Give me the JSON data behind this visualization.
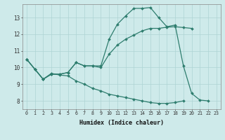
{
  "xlabel": "Humidex (Indice chaleur)",
  "x_ticks": [
    0,
    1,
    2,
    3,
    4,
    5,
    6,
    7,
    8,
    9,
    10,
    11,
    12,
    13,
    14,
    15,
    16,
    17,
    18,
    19,
    20,
    21,
    22,
    23
  ],
  "y_ticks": [
    8,
    9,
    10,
    11,
    12,
    13
  ],
  "xlim": [
    -0.5,
    23.5
  ],
  "ylim": [
    7.5,
    13.8
  ],
  "background_color": "#ceeaea",
  "line_color": "#2e7d6e",
  "grid_color": "#aed4d4",
  "series": [
    {
      "x": [
        0,
        1,
        2,
        3,
        4,
        5,
        6,
        7,
        8,
        9,
        10,
        11,
        12,
        13,
        14,
        15,
        16,
        17,
        18,
        19,
        20,
        21,
        22
      ],
      "y": [
        10.5,
        9.9,
        9.3,
        9.6,
        9.6,
        9.7,
        10.3,
        10.1,
        10.1,
        10.1,
        11.7,
        12.6,
        13.1,
        13.55,
        13.55,
        13.6,
        13.0,
        12.45,
        12.55,
        10.1,
        8.45,
        8.05,
        8.0
      ]
    },
    {
      "x": [
        0,
        1,
        2,
        3,
        4,
        5,
        6,
        7,
        8,
        9,
        10,
        11,
        12,
        13,
        14,
        15,
        16,
        17,
        18,
        19,
        20
      ],
      "y": [
        10.5,
        9.9,
        9.3,
        9.6,
        9.6,
        9.7,
        10.3,
        10.1,
        10.1,
        10.0,
        10.8,
        11.35,
        11.7,
        11.95,
        12.2,
        12.35,
        12.35,
        12.42,
        12.45,
        12.4,
        12.35
      ]
    },
    {
      "x": [
        0,
        1,
        2,
        3,
        4,
        5,
        6,
        7,
        8,
        9,
        10,
        11,
        12,
        13,
        14,
        15,
        16,
        17,
        18,
        19
      ],
      "y": [
        10.5,
        9.9,
        9.3,
        9.65,
        9.55,
        9.5,
        9.2,
        9.0,
        8.75,
        8.6,
        8.4,
        8.3,
        8.2,
        8.1,
        8.0,
        7.9,
        7.85,
        7.85,
        7.9,
        8.0
      ]
    }
  ]
}
